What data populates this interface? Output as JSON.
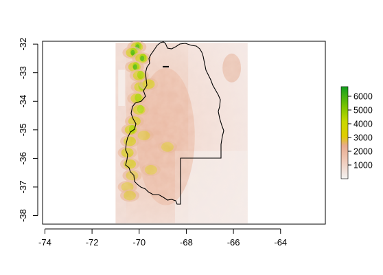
{
  "map": {
    "x_ticks": [
      -74,
      -72,
      -70,
      -68,
      -66,
      -64
    ],
    "y_ticks": [
      -32,
      -33,
      -34,
      -35,
      -36,
      -37,
      -38
    ],
    "x_range": [
      -74.1,
      -62.1
    ],
    "y_range": [
      -38.3,
      -31.9
    ],
    "raster_extent": {
      "lon": [
        -71.0,
        -65.4
      ],
      "lat": [
        -38.27,
        -31.95
      ]
    }
  },
  "legend": {
    "ticks": [
      1000,
      2000,
      3000,
      4000,
      5000,
      6000
    ],
    "range": [
      0,
      6700
    ],
    "colors": {
      "low": "#f2f2f2",
      "mid_low": "#ebb39a",
      "mid": "#e0cc00",
      "high_mid": "#a8d400",
      "high": "#119e1f"
    }
  }
}
